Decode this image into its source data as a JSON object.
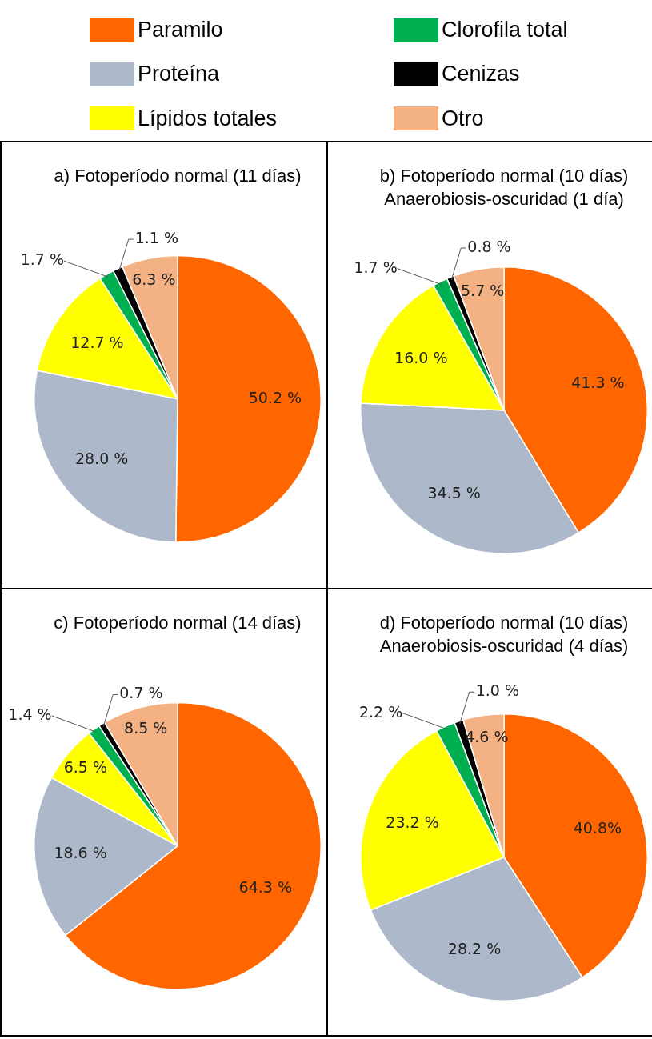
{
  "chart_data": [
    {
      "type": "pie",
      "title": "a) Fotoperíodo normal (11 días)",
      "categories": [
        "Paramilo",
        "Proteína",
        "Lípidos totales",
        "Clorofila total",
        "Cenizas",
        "Otro"
      ],
      "values": [
        50.2,
        28.0,
        12.7,
        1.7,
        1.1,
        6.3
      ],
      "colors": [
        "#ff6600",
        "#adb9ca",
        "#ffff00",
        "#00b050",
        "#000000",
        "#f4b183"
      ],
      "value_labels": [
        "50.2 %",
        "28.0 %",
        "12.7 %",
        "1.7 %",
        "1.1 %",
        "6.3 %"
      ],
      "legend": "top"
    },
    {
      "type": "pie",
      "title": "b) Fotoperíodo normal (10 días)",
      "subtitle": "Anaerobiosis-oscuridad (1 día)",
      "values": [
        41.3,
        34.5,
        16.0,
        1.7,
        0.8,
        5.7
      ],
      "colors": [
        "#ff6600",
        "#adb9ca",
        "#ffff00",
        "#00b050",
        "#000000",
        "#f4b183"
      ],
      "value_labels": [
        "41.3 %",
        "34.5 %",
        "16.0 %",
        "1.7 %",
        "0.8 %",
        "5.7 %"
      ]
    },
    {
      "type": "pie",
      "title": "c) Fotoperíodo normal (14 días)",
      "values": [
        64.3,
        18.6,
        6.5,
        1.4,
        0.7,
        8.5
      ],
      "colors": [
        "#ff6600",
        "#adb9ca",
        "#ffff00",
        "#00b050",
        "#000000",
        "#f4b183"
      ],
      "value_labels": [
        "64.3 %",
        "18.6 %",
        "6.5 %",
        "1.4 %",
        "0.7 %",
        "8.5 %"
      ]
    },
    {
      "type": "pie",
      "title": "d) Fotoperíodo normal (10 días)",
      "subtitle": "Anaerobiosis-oscuridad (4 días)",
      "values": [
        40.8,
        28.2,
        23.2,
        2.2,
        1.0,
        4.6
      ],
      "colors": [
        "#ff6600",
        "#adb9ca",
        "#ffff00",
        "#00b050",
        "#000000",
        "#f4b183"
      ],
      "value_labels": [
        "40.8%",
        "28.2 %",
        "23.2 %",
        "2.2 %",
        "1.0 %",
        "4.6 %"
      ]
    }
  ]
}
